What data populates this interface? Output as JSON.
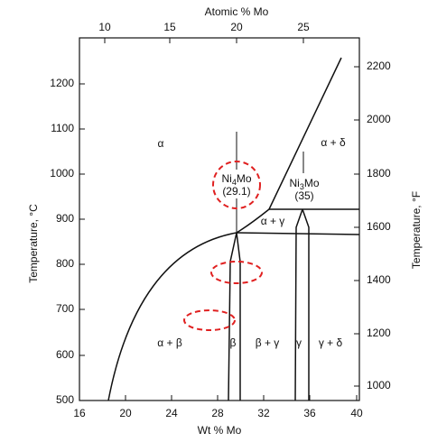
{
  "axes": {
    "top": {
      "title": "Atomic % Mo",
      "ticks": [
        "10",
        "15",
        "20",
        "25"
      ]
    },
    "bottom": {
      "title": "Wt % Mo",
      "ticks": [
        "16",
        "20",
        "24",
        "28",
        "32",
        "36",
        "40"
      ]
    },
    "left": {
      "title": "Temperature, °C",
      "ticks": [
        "500",
        "600",
        "700",
        "800",
        "900",
        "1000",
        "1100",
        "1200"
      ]
    },
    "right": {
      "title": "Temperature, °F",
      "ticks": [
        "1000",
        "1200",
        "1400",
        "1600",
        "1800",
        "2000",
        "2200"
      ]
    }
  },
  "regions": [
    "α",
    "α + δ",
    "α + γ",
    "α + β",
    "β",
    "β + γ",
    "γ",
    "γ + δ"
  ],
  "compounds": [
    {
      "element": "Ni",
      "subscript": "4",
      "rest": "Mo",
      "composition": "(29.1)"
    },
    {
      "element": "Ni",
      "subscript": "3",
      "rest": "Mo",
      "composition": "(35)"
    }
  ]
}
